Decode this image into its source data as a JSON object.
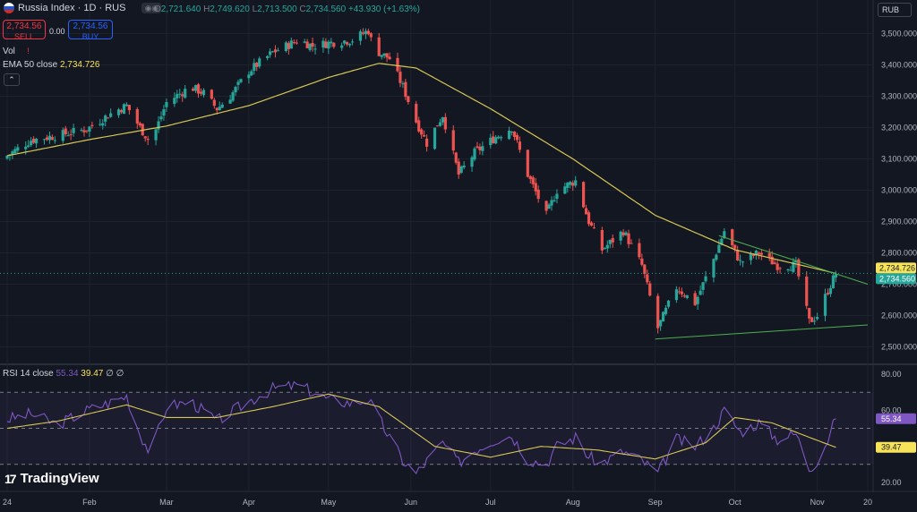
{
  "header": {
    "symbol": "Russia Index · 1D · RUS",
    "ohlc": {
      "o_label": "O",
      "o": "2,721.640",
      "h_label": "H",
      "h": "2,749.620",
      "l_label": "L",
      "l": "2,713.500",
      "c_label": "C",
      "c": "2,734.560",
      "change": "+43.930 (+1.63%)"
    },
    "sell_price": "2,734.56",
    "sell_label": "SELL",
    "buy_price": "2,734.56",
    "buy_label": "BUY",
    "spread": "0.00",
    "vol_label": "Vol",
    "ema_label": "EMA 50 close",
    "ema_value": "2,734.726",
    "currency": "RUB",
    "brand": "TradingView"
  },
  "rsi_header": {
    "label": "RSI 14 close",
    "value": "55.34",
    "ma_value": "39.47",
    "extra": "∅ ∅"
  },
  "colors": {
    "bg": "#131722",
    "up": "#26a69a",
    "down": "#ef5350",
    "ema": "#d6c654",
    "rsi": "#7e57c2",
    "rsi_ma": "#d6c654",
    "trendline": "#4caf50"
  },
  "chart_data": [
    {
      "type": "candlestick",
      "title": "Russia Index · 1D · RUS",
      "ylim": [
        2450,
        3550
      ],
      "yticks": [
        2500,
        2600,
        2700,
        2800,
        2900,
        3000,
        3100,
        3200,
        3300,
        3400,
        3500
      ],
      "ytick_labels": [
        "2,500.000",
        "2,600.000",
        "2,700.000",
        "2,800.000",
        "2,900.000",
        "3,000.000",
        "3,100.000",
        "3,200.000",
        "3,300.000",
        "3,400.000",
        "3,500.000"
      ],
      "xticks": [
        "24",
        "Feb",
        "Mar",
        "Apr",
        "May",
        "Jun",
        "Jul",
        "Aug",
        "Sep",
        "Oct",
        "Nov",
        "20"
      ],
      "close_anchors": [
        [
          "2024-01-01",
          3110
        ],
        [
          "2024-01-10",
          3160
        ],
        [
          "2024-01-20",
          3175
        ],
        [
          "2024-01-31",
          3195
        ],
        [
          "2024-02-10",
          3250
        ],
        [
          "2024-02-15",
          3270
        ],
        [
          "2024-02-20",
          3200
        ],
        [
          "2024-02-24",
          3150
        ],
        [
          "2024-03-01",
          3280
        ],
        [
          "2024-03-10",
          3330
        ],
        [
          "2024-03-15",
          3310
        ],
        [
          "2024-03-20",
          3260
        ],
        [
          "2024-03-25",
          3300
        ],
        [
          "2024-04-01",
          3380
        ],
        [
          "2024-04-10",
          3440
        ],
        [
          "2024-04-20",
          3480
        ],
        [
          "2024-04-25",
          3460
        ],
        [
          "2024-05-01",
          3470
        ],
        [
          "2024-05-10",
          3480
        ],
        [
          "2024-05-16",
          3510
        ],
        [
          "2024-05-18",
          3450
        ],
        [
          "2024-05-24",
          3420
        ],
        [
          "2024-05-29",
          3330
        ],
        [
          "2024-06-03",
          3220
        ],
        [
          "2024-06-07",
          3150
        ],
        [
          "2024-06-13",
          3240
        ],
        [
          "2024-06-19",
          3050
        ],
        [
          "2024-06-25",
          3120
        ],
        [
          "2024-07-03",
          3170
        ],
        [
          "2024-07-09",
          3200
        ],
        [
          "2024-07-15",
          3050
        ],
        [
          "2024-07-22",
          2920
        ],
        [
          "2024-07-26",
          3000
        ],
        [
          "2024-08-02",
          3030
        ],
        [
          "2024-08-07",
          2900
        ],
        [
          "2024-08-12",
          2810
        ],
        [
          "2024-08-20",
          2870
        ],
        [
          "2024-08-27",
          2760
        ],
        [
          "2024-09-02",
          2560
        ],
        [
          "2024-09-09",
          2690
        ],
        [
          "2024-09-16",
          2640
        ],
        [
          "2024-09-23",
          2780
        ],
        [
          "2024-09-27",
          2870
        ],
        [
          "2024-10-03",
          2770
        ],
        [
          "2024-10-10",
          2800
        ],
        [
          "2024-10-17",
          2760
        ],
        [
          "2024-10-24",
          2760
        ],
        [
          "2024-10-29",
          2580
        ],
        [
          "2024-11-01",
          2600
        ],
        [
          "2024-11-05",
          2680
        ],
        [
          "2024-11-08",
          2734.56
        ]
      ],
      "last_close": "2,734.560",
      "ema50": {
        "name": "EMA 50 close",
        "points": [
          [
            "2024-01-01",
            3110
          ],
          [
            "2024-01-31",
            3160
          ],
          [
            "2024-03-01",
            3205
          ],
          [
            "2024-04-01",
            3270
          ],
          [
            "2024-05-01",
            3360
          ],
          [
            "2024-05-20",
            3405
          ],
          [
            "2024-06-03",
            3390
          ],
          [
            "2024-07-01",
            3260
          ],
          [
            "2024-08-01",
            3100
          ],
          [
            "2024-09-01",
            2920
          ],
          [
            "2024-10-01",
            2810
          ],
          [
            "2024-11-08",
            2734.726
          ]
        ],
        "last": "2,734.726"
      },
      "trendlines": [
        {
          "from": [
            "2024-09-01",
            2525
          ],
          "to": [
            "2024-11-20",
            2570
          ]
        },
        {
          "from": [
            "2024-09-25",
            2855
          ],
          "to": [
            "2024-11-20",
            2700
          ]
        }
      ]
    },
    {
      "type": "line",
      "title": "RSI 14 close",
      "ylim": [
        17,
        85
      ],
      "yticks": [
        20,
        40,
        60,
        80
      ],
      "ytick_labels": [
        "20.00",
        "40.00",
        "60.00",
        "80.00"
      ],
      "bands": {
        "upper": 70,
        "middle": 50,
        "lower": 30
      },
      "series": [
        {
          "name": "RSI 14 close",
          "points": [
            [
              "2024-01-01",
              55
            ],
            [
              "2024-01-10",
              58
            ],
            [
              "2024-01-20",
              52
            ],
            [
              "2024-01-31",
              60
            ],
            [
              "2024-02-10",
              65
            ],
            [
              "2024-02-15",
              68
            ],
            [
              "2024-02-20",
              47
            ],
            [
              "2024-02-24",
              36
            ],
            [
              "2024-03-01",
              62
            ],
            [
              "2024-03-10",
              65
            ],
            [
              "2024-03-20",
              54
            ],
            [
              "2024-04-01",
              65
            ],
            [
              "2024-04-10",
              72
            ],
            [
              "2024-04-20",
              74
            ],
            [
              "2024-04-25",
              70
            ],
            [
              "2024-05-01",
              66
            ],
            [
              "2024-05-10",
              64
            ],
            [
              "2024-05-16",
              66
            ],
            [
              "2024-05-22",
              50
            ],
            [
              "2024-05-29",
              32
            ],
            [
              "2024-06-03",
              25
            ],
            [
              "2024-06-13",
              42
            ],
            [
              "2024-06-19",
              31
            ],
            [
              "2024-06-25",
              38
            ],
            [
              "2024-07-03",
              44
            ],
            [
              "2024-07-09",
              46
            ],
            [
              "2024-07-15",
              33
            ],
            [
              "2024-07-22",
              30
            ],
            [
              "2024-07-26",
              40
            ],
            [
              "2024-08-02",
              45
            ],
            [
              "2024-08-07",
              34
            ],
            [
              "2024-08-12",
              31
            ],
            [
              "2024-08-20",
              37
            ],
            [
              "2024-08-27",
              32
            ],
            [
              "2024-09-02",
              25
            ],
            [
              "2024-09-09",
              44
            ],
            [
              "2024-09-16",
              40
            ],
            [
              "2024-09-23",
              50
            ],
            [
              "2024-09-27",
              60
            ],
            [
              "2024-10-03",
              48
            ],
            [
              "2024-10-10",
              53
            ],
            [
              "2024-10-17",
              44
            ],
            [
              "2024-10-24",
              47
            ],
            [
              "2024-10-29",
              28
            ],
            [
              "2024-11-01",
              32
            ],
            [
              "2024-11-05",
              44
            ],
            [
              "2024-11-08",
              55.34
            ]
          ],
          "last": "55.34"
        },
        {
          "name": "RSI-based MA",
          "points": [
            [
              "2024-01-01",
              50
            ],
            [
              "2024-01-20",
              54
            ],
            [
              "2024-02-15",
              63
            ],
            [
              "2024-03-01",
              56
            ],
            [
              "2024-03-20",
              56
            ],
            [
              "2024-04-10",
              62
            ],
            [
              "2024-05-01",
              69
            ],
            [
              "2024-05-20",
              62
            ],
            [
              "2024-06-10",
              40
            ],
            [
              "2024-07-01",
              34
            ],
            [
              "2024-07-20",
              40
            ],
            [
              "2024-08-10",
              38
            ],
            [
              "2024-09-01",
              33
            ],
            [
              "2024-09-20",
              42
            ],
            [
              "2024-10-01",
              56
            ],
            [
              "2024-10-15",
              53
            ],
            [
              "2024-10-29",
              45
            ],
            [
              "2024-11-08",
              39.47
            ]
          ],
          "last": "39.47"
        }
      ]
    }
  ]
}
